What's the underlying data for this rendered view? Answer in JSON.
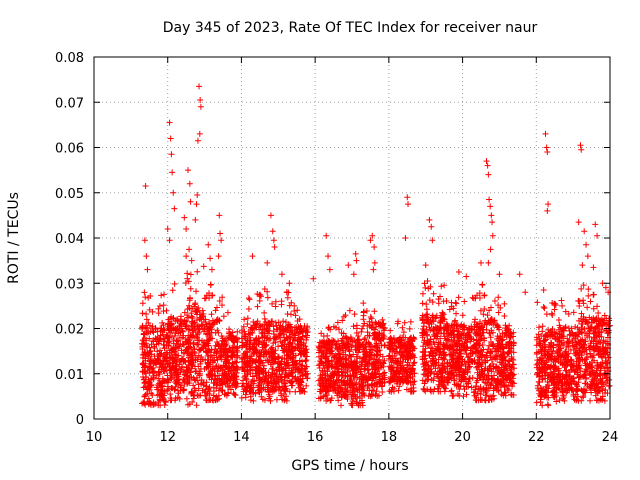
{
  "chart_data": {
    "type": "scatter",
    "title": "Day 345 of 2023, Rate Of TEC Index for receiver naur",
    "xlabel": "GPS time / hours",
    "ylabel": "ROTI / TECUs",
    "xlim": [
      10,
      24
    ],
    "ylim": [
      0,
      0.08
    ],
    "x_ticks": [
      "10",
      "12",
      "14",
      "16",
      "18",
      "20",
      "22",
      "24"
    ],
    "y_ticks": [
      "0",
      "0.01",
      "0.02",
      "0.03",
      "0.04",
      "0.05",
      "0.06",
      "0.07",
      "0.08"
    ],
    "grid": true,
    "marker": "+",
    "series_color": "#ff0000",
    "series": [
      {
        "name": "ROTI",
        "points": [
          [
            11.4,
            0.0515
          ],
          [
            11.38,
            0.0395
          ],
          [
            11.42,
            0.036
          ],
          [
            11.45,
            0.033
          ],
          [
            12.05,
            0.0655
          ],
          [
            12.08,
            0.062
          ],
          [
            12.1,
            0.0585
          ],
          [
            12.12,
            0.0545
          ],
          [
            12.15,
            0.05
          ],
          [
            12.18,
            0.0465
          ],
          [
            12.0,
            0.042
          ],
          [
            12.05,
            0.0395
          ],
          [
            12.45,
            0.0445
          ],
          [
            12.5,
            0.042
          ],
          [
            12.55,
            0.055
          ],
          [
            12.6,
            0.052
          ],
          [
            12.62,
            0.048
          ],
          [
            12.58,
            0.0375
          ],
          [
            12.5,
            0.036
          ],
          [
            12.65,
            0.035
          ],
          [
            12.85,
            0.0735
          ],
          [
            12.88,
            0.0705
          ],
          [
            12.9,
            0.069
          ],
          [
            12.87,
            0.063
          ],
          [
            12.82,
            0.0615
          ],
          [
            12.8,
            0.0495
          ],
          [
            12.78,
            0.0475
          ],
          [
            12.75,
            0.044
          ],
          [
            13.1,
            0.0385
          ],
          [
            13.15,
            0.0355
          ],
          [
            13.2,
            0.033
          ],
          [
            13.4,
            0.045
          ],
          [
            13.42,
            0.041
          ],
          [
            13.45,
            0.0395
          ],
          [
            13.38,
            0.036
          ],
          [
            14.3,
            0.036
          ],
          [
            14.8,
            0.045
          ],
          [
            14.85,
            0.0415
          ],
          [
            14.88,
            0.0395
          ],
          [
            14.9,
            0.038
          ],
          [
            14.7,
            0.0345
          ],
          [
            15.1,
            0.032
          ],
          [
            15.3,
            0.03
          ],
          [
            15.95,
            0.031
          ],
          [
            16.3,
            0.0405
          ],
          [
            16.35,
            0.036
          ],
          [
            16.4,
            0.033
          ],
          [
            16.9,
            0.034
          ],
          [
            17.05,
            0.032
          ],
          [
            17.1,
            0.0365
          ],
          [
            17.12,
            0.035
          ],
          [
            17.5,
            0.0395
          ],
          [
            17.55,
            0.0405
          ],
          [
            17.6,
            0.038
          ],
          [
            17.62,
            0.0345
          ],
          [
            17.58,
            0.033
          ],
          [
            18.5,
            0.049
          ],
          [
            18.52,
            0.0475
          ],
          [
            18.45,
            0.04
          ],
          [
            19.0,
            0.034
          ],
          [
            19.05,
            0.0305
          ],
          [
            19.1,
            0.044
          ],
          [
            19.15,
            0.0425
          ],
          [
            19.18,
            0.0395
          ],
          [
            19.9,
            0.0325
          ],
          [
            20.1,
            0.0315
          ],
          [
            20.5,
            0.0345
          ],
          [
            20.65,
            0.057
          ],
          [
            20.68,
            0.056
          ],
          [
            20.7,
            0.054
          ],
          [
            20.72,
            0.0485
          ],
          [
            20.75,
            0.047
          ],
          [
            20.78,
            0.045
          ],
          [
            20.8,
            0.0435
          ],
          [
            20.82,
            0.0405
          ],
          [
            20.76,
            0.0375
          ],
          [
            20.7,
            0.0345
          ],
          [
            21.0,
            0.032
          ],
          [
            21.55,
            0.032
          ],
          [
            21.7,
            0.028
          ],
          [
            22.25,
            0.063
          ],
          [
            22.28,
            0.06
          ],
          [
            22.3,
            0.059
          ],
          [
            22.32,
            0.0475
          ],
          [
            22.3,
            0.046
          ],
          [
            22.2,
            0.0285
          ],
          [
            23.2,
            0.0605
          ],
          [
            23.22,
            0.0595
          ],
          [
            23.15,
            0.0435
          ],
          [
            23.3,
            0.0415
          ],
          [
            23.35,
            0.0385
          ],
          [
            23.4,
            0.036
          ],
          [
            23.25,
            0.034
          ],
          [
            23.6,
            0.043
          ],
          [
            23.65,
            0.0405
          ],
          [
            23.55,
            0.0335
          ],
          [
            23.8,
            0.03
          ],
          [
            23.95,
            0.028
          ]
        ]
      }
    ],
    "dense_bands": [
      {
        "x": [
          11.3,
          12.0
        ],
        "y": [
          0.003,
          0.028
        ]
      },
      {
        "x": [
          12.0,
          12.45
        ],
        "y": [
          0.004,
          0.03
        ]
      },
      {
        "x": [
          12.45,
          13.0
        ],
        "y": [
          0.003,
          0.034
        ]
      },
      {
        "x": [
          13.0,
          13.5
        ],
        "y": [
          0.004,
          0.03
        ]
      },
      {
        "x": [
          13.5,
          13.9
        ],
        "y": [
          0.005,
          0.024
        ]
      },
      {
        "x": [
          14.0,
          14.6
        ],
        "y": [
          0.004,
          0.028
        ]
      },
      {
        "x": [
          14.6,
          15.3
        ],
        "y": [
          0.004,
          0.029
        ]
      },
      {
        "x": [
          15.3,
          15.8
        ],
        "y": [
          0.006,
          0.026
        ]
      },
      {
        "x": [
          16.1,
          16.7
        ],
        "y": [
          0.004,
          0.022
        ]
      },
      {
        "x": [
          16.7,
          17.3
        ],
        "y": [
          0.003,
          0.024
        ]
      },
      {
        "x": [
          17.3,
          17.9
        ],
        "y": [
          0.005,
          0.028
        ]
      },
      {
        "x": [
          18.0,
          18.7
        ],
        "y": [
          0.006,
          0.022
        ]
      },
      {
        "x": [
          18.9,
          19.6
        ],
        "y": [
          0.006,
          0.03
        ]
      },
      {
        "x": [
          19.6,
          20.3
        ],
        "y": [
          0.005,
          0.027
        ]
      },
      {
        "x": [
          20.3,
          21.0
        ],
        "y": [
          0.004,
          0.03
        ]
      },
      {
        "x": [
          21.0,
          21.4
        ],
        "y": [
          0.005,
          0.026
        ]
      },
      {
        "x": [
          22.0,
          22.6
        ],
        "y": [
          0.003,
          0.026
        ]
      },
      {
        "x": [
          22.6,
          23.2
        ],
        "y": [
          0.004,
          0.027
        ]
      },
      {
        "x": [
          23.2,
          24.0
        ],
        "y": [
          0.004,
          0.03
        ]
      }
    ]
  }
}
